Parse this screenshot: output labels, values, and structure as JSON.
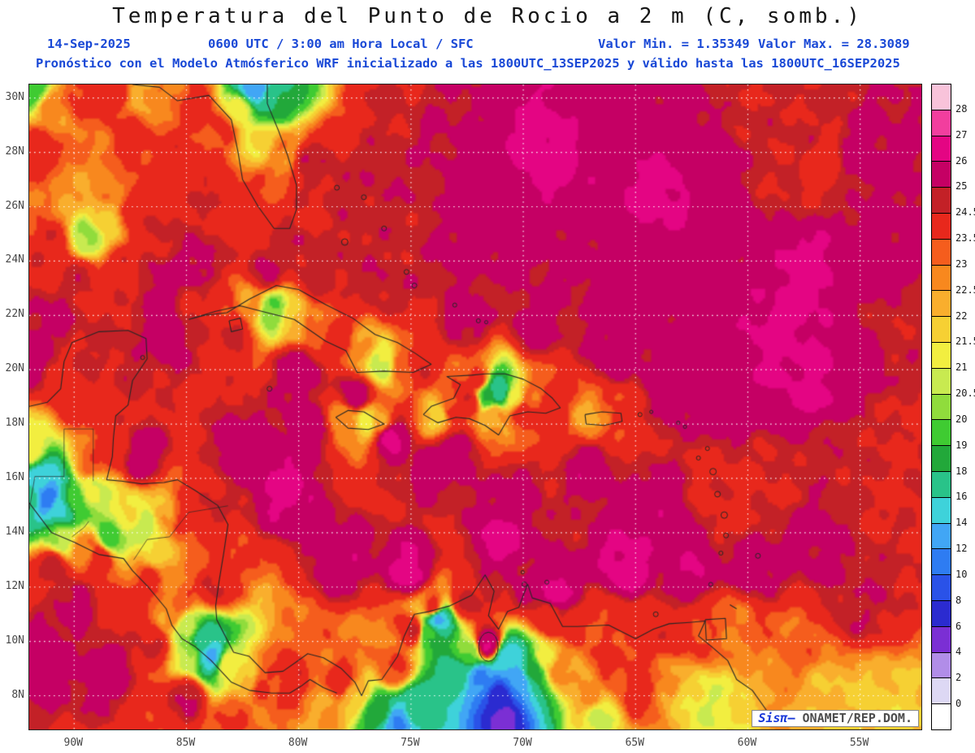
{
  "header": {
    "title": "Temperatura del Punto de Rocio a 2 m (C, somb.)",
    "date": "14-Sep-2025",
    "time_info": "0600 UTC / 3:00 am Hora Local / SFC",
    "min_label": "Valor Min. = 1.35349",
    "max_label": "Valor Max. = 28.3089",
    "model_line": "Pronóstico con el Modelo Atmósferico WRF inicializado a las 1800UTC_13SEP2025 y válido hasta las  1800UTC_16SEP2025"
  },
  "watermark": {
    "brand": "Sisπ",
    "dash": "–",
    "org": "ONAMET/REP.DOM."
  },
  "colors_meta": {
    "header_text": "#1948d6",
    "axis_text": "#474747",
    "grid": "#ffffff",
    "coastline": "#262626"
  },
  "chart_data": {
    "type": "heatmap",
    "title": "Temperatura del Punto de Rocio a 2 m (C, somb.)",
    "units": "C",
    "valor_min": 1.35349,
    "valor_max": 28.3089,
    "legend_position": "right",
    "grid": "dotted-white",
    "lat_tick_labels": [
      "30N",
      "28N",
      "26N",
      "24N",
      "22N",
      "20N",
      "18N",
      "16N",
      "14N",
      "12N",
      "10N",
      "8N"
    ],
    "lat_tick_values": [
      30,
      28,
      26,
      24,
      22,
      20,
      18,
      16,
      14,
      12,
      10,
      8
    ],
    "lon_tick_labels": [
      "90W",
      "85W",
      "80W",
      "75W",
      "70W",
      "65W",
      "60W",
      "55W"
    ],
    "lon_tick_values": [
      -90,
      -85,
      -80,
      -75,
      -70,
      -65,
      -60,
      -55
    ],
    "lon_range": [
      -92.0,
      -52.2
    ],
    "lat_range": [
      6.7,
      30.5
    ],
    "levels": [
      0,
      2,
      4,
      6,
      8,
      10,
      12,
      14,
      16,
      18,
      19,
      20,
      20.5,
      21,
      21.5,
      22,
      22.5,
      23,
      23.5,
      24.5,
      25,
      26,
      27,
      28
    ],
    "colors": [
      "#ffffff",
      "#ddd8f4",
      "#b18de8",
      "#7b2fd4",
      "#2b2bd0",
      "#2a52e8",
      "#2e7cf2",
      "#41a6f5",
      "#3ed2da",
      "#29c389",
      "#22a83a",
      "#3fcb32",
      "#90dc3c",
      "#c8ea50",
      "#f2ee40",
      "#f6d033",
      "#f9ae2d",
      "#f8881e",
      "#f55d1d",
      "#e8281c",
      "#c32127",
      "#c50064",
      "#e40583",
      "#f23e9e",
      "#f8c3da"
    ],
    "field_points": [
      [
        -91.8,
        30.3,
        19.5
      ],
      [
        -91.0,
        29.6,
        22.8
      ],
      [
        -89.6,
        30.1,
        23.8
      ],
      [
        -88.2,
        30.3,
        24.2
      ],
      [
        -87.0,
        30.2,
        22.2
      ],
      [
        -85.8,
        30.1,
        23.0
      ],
      [
        -84.5,
        29.6,
        24.0
      ],
      [
        -91.5,
        28.0,
        24.0
      ],
      [
        -89.5,
        28.5,
        23.0
      ],
      [
        -87.5,
        28.5,
        23.8
      ],
      [
        -85.5,
        27.5,
        24.2
      ],
      [
        -91.8,
        25.8,
        23.2
      ],
      [
        -90.2,
        26.3,
        22.4
      ],
      [
        -88.6,
        26.8,
        22.8
      ],
      [
        -91.0,
        24.6,
        24.4
      ],
      [
        -89.4,
        24.9,
        20.2
      ],
      [
        -88.7,
        25.6,
        21.8
      ],
      [
        -87.2,
        25.9,
        24.1
      ],
      [
        -86.0,
        25.0,
        24.6
      ],
      [
        -89.8,
        23.4,
        24.6
      ],
      [
        -88.0,
        23.6,
        24.2
      ],
      [
        -86.2,
        23.2,
        25.2
      ],
      [
        -82.0,
        30.4,
        12.5
      ],
      [
        -81.0,
        30.0,
        18.0
      ],
      [
        -82.6,
        29.6,
        21.2
      ],
      [
        -83.5,
        28.8,
        23.6
      ],
      [
        -81.7,
        28.4,
        21.6
      ],
      [
        -80.6,
        28.0,
        22.8
      ],
      [
        -81.2,
        26.8,
        23.2
      ],
      [
        -80.4,
        25.6,
        24.4
      ],
      [
        -82.0,
        25.9,
        24.2
      ],
      [
        -84.0,
        26.5,
        24.4
      ],
      [
        -79.6,
        27.6,
        24.8
      ],
      [
        -78.0,
        27.0,
        24.8
      ],
      [
        -76.2,
        26.6,
        24.9
      ],
      [
        -74.5,
        26.0,
        24.8
      ],
      [
        -80.0,
        24.4,
        24.9
      ],
      [
        -77.6,
        23.8,
        24.8
      ],
      [
        -75.4,
        24.4,
        24.7
      ],
      [
        -73.0,
        24.6,
        25.4
      ],
      [
        -72.0,
        26.8,
        25.5
      ],
      [
        -70.5,
        25.0,
        25.5
      ],
      [
        -69.0,
        28.0,
        26.4
      ],
      [
        -66.0,
        29.0,
        25.5
      ],
      [
        -63.5,
        29.5,
        25.4
      ],
      [
        -60.0,
        29.8,
        24.6
      ],
      [
        -57.5,
        28.6,
        24.6
      ],
      [
        -56.8,
        27.8,
        24.0
      ],
      [
        -58.8,
        27.0,
        24.6
      ],
      [
        -55.0,
        28.0,
        25.3
      ],
      [
        -61.5,
        27.5,
        25.4
      ],
      [
        -64.0,
        26.5,
        26.3
      ],
      [
        -60.5,
        25.0,
        25.4
      ],
      [
        -57.5,
        23.6,
        26.3
      ],
      [
        -54.5,
        24.0,
        25.4
      ],
      [
        -62.0,
        23.0,
        25.5
      ],
      [
        -58.5,
        21.0,
        26.2
      ],
      [
        -55.0,
        20.0,
        25.4
      ],
      [
        -53.5,
        21.5,
        24.7
      ],
      [
        -65.5,
        23.5,
        25.5
      ],
      [
        -67.5,
        24.5,
        25.3
      ],
      [
        -75.8,
        29.8,
        24.6
      ],
      [
        -73.5,
        28.6,
        25.1
      ],
      [
        -53.3,
        18.0,
        24.4
      ],
      [
        -55.8,
        17.0,
        24.7
      ],
      [
        -53.8,
        15.0,
        24.4
      ],
      [
        -59.5,
        15.8,
        24.4
      ],
      [
        -57.0,
        13.5,
        25.3
      ],
      [
        -61.0,
        18.5,
        25.5
      ],
      [
        -63.5,
        19.5,
        25.6
      ],
      [
        -57.0,
        19.5,
        26.2
      ],
      [
        -61.55,
        16.25,
        24.3
      ],
      [
        -60.8,
        14.7,
        24.3
      ],
      [
        -55.2,
        11.5,
        24.9
      ],
      [
        -57.8,
        10.0,
        23.2
      ],
      [
        -56.2,
        8.0,
        22.0
      ],
      [
        -54.0,
        7.5,
        21.8
      ],
      [
        -66.0,
        20.5,
        25.5
      ],
      [
        -69.5,
        21.5,
        25.4
      ],
      [
        -72.5,
        21.8,
        25.3
      ],
      [
        -76.0,
        23.0,
        24.9
      ],
      [
        -79.0,
        23.4,
        24.7
      ],
      [
        -81.5,
        23.6,
        25.0
      ],
      [
        -84.5,
        23.8,
        25.3
      ],
      [
        -85.8,
        21.5,
        25.5
      ],
      [
        -83.0,
        21.6,
        24.7
      ],
      [
        -80.0,
        20.0,
        25.5
      ],
      [
        -77.5,
        19.0,
        25.6
      ],
      [
        -74.0,
        16.5,
        25.5
      ],
      [
        -70.5,
        15.5,
        25.4
      ],
      [
        -67.0,
        16.5,
        25.6
      ],
      [
        -64.0,
        15.0,
        25.6
      ],
      [
        -62.5,
        12.5,
        25.9
      ],
      [
        -65.5,
        12.8,
        26.4
      ],
      [
        -68.5,
        11.8,
        26.3
      ],
      [
        -71.0,
        13.6,
        26.4
      ],
      [
        -75.0,
        12.6,
        26.3
      ],
      [
        -78.0,
        13.0,
        25.6
      ],
      [
        -80.6,
        15.6,
        26.2
      ],
      [
        -82.5,
        17.0,
        25.5
      ],
      [
        -76.0,
        17.6,
        26.3
      ],
      [
        -73.0,
        17.0,
        25.6
      ],
      [
        -79.5,
        17.8,
        25.5
      ],
      [
        -87.0,
        16.8,
        25.6
      ],
      [
        -59.8,
        12.8,
        25.4
      ],
      [
        -84.6,
        22.1,
        24.4
      ],
      [
        -83.4,
        22.3,
        23.6
      ],
      [
        -82.2,
        22.4,
        22.4
      ],
      [
        -81.2,
        22.2,
        20.0
      ],
      [
        -80.2,
        21.9,
        21.8
      ],
      [
        -79.2,
        21.7,
        23.2
      ],
      [
        -78.2,
        21.2,
        24.0
      ],
      [
        -77.2,
        20.9,
        22.6
      ],
      [
        -76.3,
        20.3,
        20.6
      ],
      [
        -75.3,
        20.2,
        23.4
      ],
      [
        -74.6,
        20.3,
        24.3
      ],
      [
        -73.8,
        18.3,
        21.8
      ],
      [
        -73.2,
        18.6,
        23.6
      ],
      [
        -72.4,
        18.8,
        24.2
      ],
      [
        -71.6,
        19.1,
        18.8
      ],
      [
        -71.1,
        19.2,
        16.5
      ],
      [
        -70.4,
        19.0,
        21.2
      ],
      [
        -69.6,
        18.9,
        23.4
      ],
      [
        -68.9,
        18.6,
        24.2
      ],
      [
        -71.3,
        18.3,
        22.6
      ],
      [
        -72.0,
        19.6,
        23.8
      ],
      [
        -70.0,
        18.4,
        24.0
      ],
      [
        -77.9,
        18.2,
        22.6
      ],
      [
        -77.0,
        18.1,
        21.2
      ],
      [
        -76.3,
        18.0,
        22.8
      ],
      [
        -66.9,
        18.2,
        22.4
      ],
      [
        -66.2,
        18.25,
        23.0
      ],
      [
        -65.9,
        18.1,
        24.0
      ],
      [
        -90.5,
        20.0,
        24.4
      ],
      [
        -89.0,
        20.5,
        24.6
      ],
      [
        -87.5,
        20.3,
        24.8
      ],
      [
        -89.8,
        18.8,
        24.1
      ],
      [
        -88.6,
        19.5,
        24.4
      ],
      [
        -92.0,
        20.5,
        25.5
      ],
      [
        -91.0,
        21.8,
        25.2
      ],
      [
        -88.3,
        17.2,
        24.2
      ],
      [
        -89.3,
        16.5,
        23.2
      ],
      [
        -92.0,
        17.0,
        21.5
      ],
      [
        -91.5,
        15.9,
        14.0
      ],
      [
        -91.2,
        15.3,
        11.0
      ],
      [
        -90.6,
        14.9,
        16.0
      ],
      [
        -92.0,
        15.3,
        17.0
      ],
      [
        -90.0,
        15.2,
        19.5
      ],
      [
        -89.2,
        15.6,
        21.0
      ],
      [
        -90.6,
        13.8,
        20.5
      ],
      [
        -89.5,
        13.4,
        23.0
      ],
      [
        -88.9,
        13.1,
        24.2
      ],
      [
        -88.4,
        13.8,
        19.5
      ],
      [
        -87.6,
        14.6,
        21.3
      ],
      [
        -86.8,
        14.3,
        20.8
      ],
      [
        -86.0,
        14.8,
        22.3
      ],
      [
        -85.0,
        14.6,
        23.8
      ],
      [
        -84.0,
        15.0,
        24.5
      ],
      [
        -86.3,
        13.2,
        21.6
      ],
      [
        -85.5,
        12.4,
        22.6
      ],
      [
        -86.6,
        12.2,
        23.8
      ],
      [
        -84.8,
        12.8,
        23.2
      ],
      [
        -83.8,
        12.0,
        24.5
      ],
      [
        -85.3,
        11.6,
        23.4
      ],
      [
        -85.8,
        10.9,
        22.6
      ],
      [
        -85.0,
        10.5,
        20.5
      ],
      [
        -84.2,
        10.0,
        16.5
      ],
      [
        -83.9,
        9.5,
        13.5
      ],
      [
        -84.8,
        9.5,
        20.8
      ],
      [
        -83.2,
        9.2,
        21.5
      ],
      [
        -82.4,
        8.8,
        21.8
      ],
      [
        -81.4,
        8.5,
        23.6
      ],
      [
        -80.2,
        8.7,
        24.2
      ],
      [
        -79.2,
        9.0,
        23.0
      ],
      [
        -78.2,
        8.6,
        24.0
      ],
      [
        -79.0,
        7.5,
        22.5
      ],
      [
        -90.0,
        11.5,
        25.3
      ],
      [
        -88.0,
        11.0,
        24.4
      ],
      [
        -91.0,
        12.8,
        24.6
      ],
      [
        -86.5,
        10.0,
        24.6
      ],
      [
        -88.5,
        9.0,
        25.5
      ],
      [
        -91.5,
        9.5,
        25.6
      ],
      [
        -85.0,
        8.0,
        25.0
      ],
      [
        -83.0,
        7.2,
        23.5
      ],
      [
        -77.5,
        8.0,
        22.0
      ],
      [
        -76.4,
        7.4,
        18.5
      ],
      [
        -75.6,
        7.0,
        12.0
      ],
      [
        -74.8,
        7.4,
        16.5
      ],
      [
        -75.8,
        9.0,
        23.5
      ],
      [
        -74.9,
        10.4,
        24.4
      ],
      [
        -74.0,
        11.2,
        24.2
      ],
      [
        -73.85,
        10.85,
        13.5
      ],
      [
        -74.2,
        10.3,
        19.0
      ],
      [
        -72.6,
        11.5,
        24.6
      ],
      [
        -71.4,
        12.2,
        24.8
      ],
      [
        -70.0,
        12.0,
        25.2
      ],
      [
        -71.6,
        9.9,
        26.2
      ],
      [
        -72.4,
        9.6,
        20.0
      ],
      [
        -73.0,
        8.8,
        17.0
      ],
      [
        -71.9,
        8.6,
        12.0
      ],
      [
        -71.1,
        8.0,
        7.0
      ],
      [
        -70.9,
        7.2,
        5.5
      ],
      [
        -70.2,
        8.6,
        12.5
      ],
      [
        -69.6,
        8.9,
        18.5
      ],
      [
        -69.0,
        9.4,
        21.5
      ],
      [
        -70.7,
        9.3,
        14.0
      ],
      [
        -68.3,
        9.0,
        22.8
      ],
      [
        -67.0,
        8.0,
        22.5
      ],
      [
        -66.0,
        8.8,
        23.6
      ],
      [
        -66.6,
        7.3,
        21.0
      ],
      [
        -64.8,
        8.2,
        23.8
      ],
      [
        -63.6,
        8.6,
        22.8
      ],
      [
        -62.6,
        8.0,
        21.4
      ],
      [
        -61.4,
        7.6,
        21.0
      ],
      [
        -60.2,
        7.2,
        21.6
      ],
      [
        -59.0,
        7.8,
        22.6
      ],
      [
        -68.8,
        10.9,
        24.4
      ],
      [
        -67.6,
        10.6,
        23.8
      ],
      [
        -66.2,
        10.4,
        23.5
      ],
      [
        -64.6,
        10.2,
        24.0
      ],
      [
        -63.2,
        10.4,
        24.2
      ],
      [
        -61.8,
        10.3,
        23.4
      ],
      [
        -60.9,
        10.6,
        23.0
      ]
    ]
  }
}
